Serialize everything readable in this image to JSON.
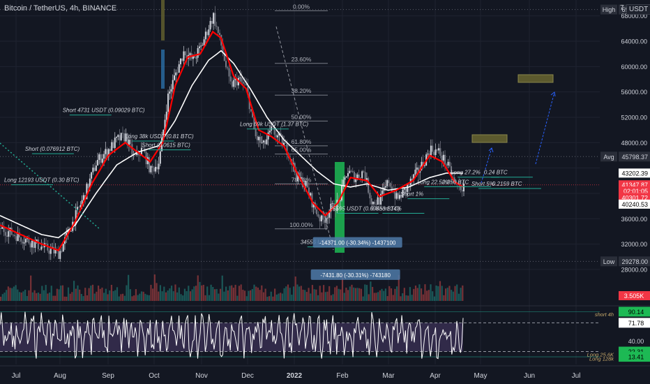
{
  "header": {
    "symbol_title": "Bitcoin / TetherUS, 4h, BINANCE",
    "currency": "USDT",
    "scale_toggle": "7"
  },
  "colors": {
    "background": "#131722",
    "grid": "#1f2330",
    "text": "#d1d4dc",
    "up_candle": "#d1d4dc",
    "down_candle": "#787b86",
    "ma_fast": "#ff0000",
    "ma_slow": "#ffffff",
    "fib_line": "#787b86",
    "volume_up": "#26a69a",
    "volume_down": "#ef5350",
    "rsi_band": "#4a3a6a",
    "rsi_line": "#ffffff",
    "green_bar": "#1db954",
    "olive_box": "#5c5a2e",
    "blue_arrow": "#2962ff",
    "label_red": "#f23645",
    "label_white": "#ffffff",
    "label_green": "#22ab94"
  },
  "chart_data": {
    "type": "candlestick",
    "x_axis_labels": [
      "Jul",
      "Aug",
      "Sep",
      "Oct",
      "Nov",
      "Dec",
      "2022",
      "Feb",
      "Mar",
      "Apr",
      "May",
      "Jun",
      "Jul"
    ],
    "price_axis_labels": [
      "68000.00",
      "64000.00",
      "60000.00",
      "56000.00",
      "52000.00",
      "48000.00",
      "36000.00",
      "32000.00",
      "28000.00"
    ],
    "ylim": [
      27000,
      70500
    ],
    "price_path": [
      {
        "t": 0,
        "p": 34500
      },
      {
        "t": 10,
        "p": 33000
      },
      {
        "t": 20,
        "p": 31500
      },
      {
        "t": 28,
        "p": 30500
      },
      {
        "t": 34,
        "p": 35000
      },
      {
        "t": 40,
        "p": 39500
      },
      {
        "t": 46,
        "p": 45000
      },
      {
        "t": 52,
        "p": 47000
      },
      {
        "t": 56,
        "p": 48500
      },
      {
        "t": 60,
        "p": 49000
      },
      {
        "t": 64,
        "p": 45500
      },
      {
        "t": 68,
        "p": 47000
      },
      {
        "t": 72,
        "p": 43500
      },
      {
        "t": 76,
        "p": 45000
      },
      {
        "t": 80,
        "p": 55000
      },
      {
        "t": 84,
        "p": 59000
      },
      {
        "t": 88,
        "p": 62500
      },
      {
        "t": 92,
        "p": 61000
      },
      {
        "t": 96,
        "p": 63000
      },
      {
        "t": 100,
        "p": 66500
      },
      {
        "t": 102,
        "p": 68000
      },
      {
        "t": 106,
        "p": 63000
      },
      {
        "t": 110,
        "p": 57000
      },
      {
        "t": 114,
        "p": 58000
      },
      {
        "t": 118,
        "p": 56500
      },
      {
        "t": 122,
        "p": 49000
      },
      {
        "t": 126,
        "p": 47500
      },
      {
        "t": 130,
        "p": 50000
      },
      {
        "t": 134,
        "p": 48500
      },
      {
        "t": 138,
        "p": 46500
      },
      {
        "t": 142,
        "p": 42500
      },
      {
        "t": 146,
        "p": 41500
      },
      {
        "t": 150,
        "p": 38000
      },
      {
        "t": 154,
        "p": 35500
      },
      {
        "t": 158,
        "p": 37500
      },
      {
        "t": 162,
        "p": 38500
      },
      {
        "t": 166,
        "p": 43500
      },
      {
        "t": 170,
        "p": 42500
      },
      {
        "t": 174,
        "p": 43500
      },
      {
        "t": 178,
        "p": 38500
      },
      {
        "t": 182,
        "p": 39000
      },
      {
        "t": 186,
        "p": 42000
      },
      {
        "t": 190,
        "p": 39000
      },
      {
        "t": 194,
        "p": 40500
      },
      {
        "t": 198,
        "p": 42500
      },
      {
        "t": 202,
        "p": 44500
      },
      {
        "t": 206,
        "p": 47000
      },
      {
        "t": 210,
        "p": 46500
      },
      {
        "t": 214,
        "p": 44500
      },
      {
        "t": 218,
        "p": 41347
      },
      {
        "t": 222,
        "p": 40800
      }
    ],
    "ma_fast_path": [
      {
        "t": 0,
        "p": 35000
      },
      {
        "t": 10,
        "p": 33500
      },
      {
        "t": 20,
        "p": 32000
      },
      {
        "t": 28,
        "p": 31000
      },
      {
        "t": 36,
        "p": 35500
      },
      {
        "t": 44,
        "p": 41500
      },
      {
        "t": 52,
        "p": 46000
      },
      {
        "t": 60,
        "p": 48000
      },
      {
        "t": 66,
        "p": 46500
      },
      {
        "t": 72,
        "p": 45000
      },
      {
        "t": 78,
        "p": 48000
      },
      {
        "t": 84,
        "p": 57000
      },
      {
        "t": 90,
        "p": 61500
      },
      {
        "t": 96,
        "p": 62000
      },
      {
        "t": 102,
        "p": 65500
      },
      {
        "t": 106,
        "p": 64500
      },
      {
        "t": 112,
        "p": 58500
      },
      {
        "t": 118,
        "p": 56500
      },
      {
        "t": 124,
        "p": 50000
      },
      {
        "t": 130,
        "p": 49000
      },
      {
        "t": 136,
        "p": 47500
      },
      {
        "t": 142,
        "p": 43500
      },
      {
        "t": 150,
        "p": 38500
      },
      {
        "t": 156,
        "p": 36500
      },
      {
        "t": 162,
        "p": 38500
      },
      {
        "t": 168,
        "p": 42500
      },
      {
        "t": 176,
        "p": 42000
      },
      {
        "t": 182,
        "p": 39500
      },
      {
        "t": 190,
        "p": 40500
      },
      {
        "t": 198,
        "p": 42000
      },
      {
        "t": 206,
        "p": 46000
      },
      {
        "t": 212,
        "p": 45000
      },
      {
        "t": 218,
        "p": 41800
      },
      {
        "t": 222,
        "p": 41000
      }
    ],
    "ma_slow_path": [
      {
        "t": 0,
        "p": 36500
      },
      {
        "t": 10,
        "p": 35000
      },
      {
        "t": 20,
        "p": 33500
      },
      {
        "t": 28,
        "p": 33000
      },
      {
        "t": 36,
        "p": 35000
      },
      {
        "t": 46,
        "p": 40000
      },
      {
        "t": 56,
        "p": 44500
      },
      {
        "t": 66,
        "p": 46500
      },
      {
        "t": 76,
        "p": 47500
      },
      {
        "t": 84,
        "p": 51500
      },
      {
        "t": 92,
        "p": 57000
      },
      {
        "t": 100,
        "p": 61000
      },
      {
        "t": 106,
        "p": 62500
      },
      {
        "t": 112,
        "p": 60500
      },
      {
        "t": 120,
        "p": 56500
      },
      {
        "t": 128,
        "p": 52000
      },
      {
        "t": 136,
        "p": 48500
      },
      {
        "t": 144,
        "p": 46000
      },
      {
        "t": 152,
        "p": 43500
      },
      {
        "t": 160,
        "p": 41500
      },
      {
        "t": 168,
        "p": 41000
      },
      {
        "t": 176,
        "p": 41500
      },
      {
        "t": 186,
        "p": 40500
      },
      {
        "t": 196,
        "p": 41000
      },
      {
        "t": 206,
        "p": 42500
      },
      {
        "t": 214,
        "p": 43200
      },
      {
        "t": 222,
        "p": 43200
      }
    ],
    "fib_levels": [
      {
        "label": "0.00%",
        "price": 68800
      },
      {
        "label": "23.60%",
        "price": 60500
      },
      {
        "label": "38.20%",
        "price": 55500
      },
      {
        "label": "50.00%",
        "price": 51400
      },
      {
        "label": "61.80%",
        "price": 47500
      },
      {
        "label": "65.00%",
        "price": 46200
      },
      {
        "label": "78.60%",
        "price": 41500
      },
      {
        "label": "100.00%",
        "price": 34400
      }
    ],
    "horizontal_levels": [
      {
        "label": "High",
        "value": "69000.00",
        "price": 69000
      },
      {
        "label": "Avg",
        "value": "45798.37",
        "price": 45798
      },
      {
        "label": "Low",
        "value": "29278.00",
        "price": 29278
      }
    ],
    "price_tags": [
      {
        "value": "43202.39",
        "price": 43202,
        "style": "white"
      },
      {
        "value": "41347.87",
        "price": 41348,
        "style": "red"
      },
      {
        "value": "02:01:05",
        "price": 40400,
        "style": "red"
      },
      {
        "value": "40301.72",
        "price": 39350,
        "style": "red"
      },
      {
        "value": "40240.53",
        "price": 38300,
        "style": "white"
      }
    ],
    "trade_annotations": [
      {
        "text": "Short 4731 USDT (0.09029 BTC)",
        "t": 30,
        "p": 52800
      },
      {
        "text": "Long 38k USDT (0.81 BTC)",
        "t": 60,
        "p": 48700
      },
      {
        "text": "Short (0.076912 BTC)",
        "t": 12,
        "p": 46700
      },
      {
        "text": "Short (0.0615 BTC)",
        "t": 68,
        "p": 47300
      },
      {
        "text": "Long 12193 USDT (0.30 BTC)",
        "t": 2,
        "p": 41800
      },
      {
        "text": "Long 69k USDT (1.37 BTC)",
        "t": 115,
        "p": 50600
      },
      {
        "text": "25595 USDT (0.69453 BTC)",
        "t": 158,
        "p": 37300
      },
      {
        "text": "Short 14%",
        "t": 180,
        "p": 37300
      },
      {
        "text": "Long 27.2%",
        "t": 216,
        "p": 43000
      },
      {
        "text": "0.24 BTC",
        "t": 232,
        "p": 43000
      },
      {
        "text": "Long 22.52%",
        "t": 200,
        "p": 41500
      },
      {
        "text": "0.256 BTC",
        "t": 212,
        "p": 41500
      },
      {
        "text": "Short 5%",
        "t": 226,
        "p": 41200
      },
      {
        "text": "0.2159 BTC",
        "t": 236,
        "p": 41200
      },
      {
        "text": "Short 1%",
        "t": 192,
        "p": 39600
      },
      {
        "text": "34556 USDT (",
        "t": 144,
        "p": 32000
      }
    ],
    "measure_boxes": [
      {
        "text": "-14371.00 (-30.34%) -1437100",
        "t": 150,
        "p": 32000
      },
      {
        "text": "-7431.80 (-30.31%) -743180",
        "t": 149,
        "p": 26900
      }
    ],
    "volume": {
      "label": "3.505K"
    },
    "rsi": {
      "levels": [
        {
          "label": "90.14",
          "value": 90,
          "style": "green"
        },
        {
          "label": "71.78",
          "value": 71,
          "style": "white"
        },
        {
          "label": "40.00",
          "value": 40,
          "style": "plain"
        },
        {
          "label": "22.31",
          "value": 22,
          "style": "green"
        },
        {
          "label": "13.41",
          "value": 13,
          "style": "green"
        }
      ],
      "side_notes": [
        {
          "text": "short 4h",
          "value": 86
        },
        {
          "text": "Long 25.6K",
          "value": 17
        },
        {
          "text": "Long 128k",
          "value": 10
        }
      ]
    }
  }
}
